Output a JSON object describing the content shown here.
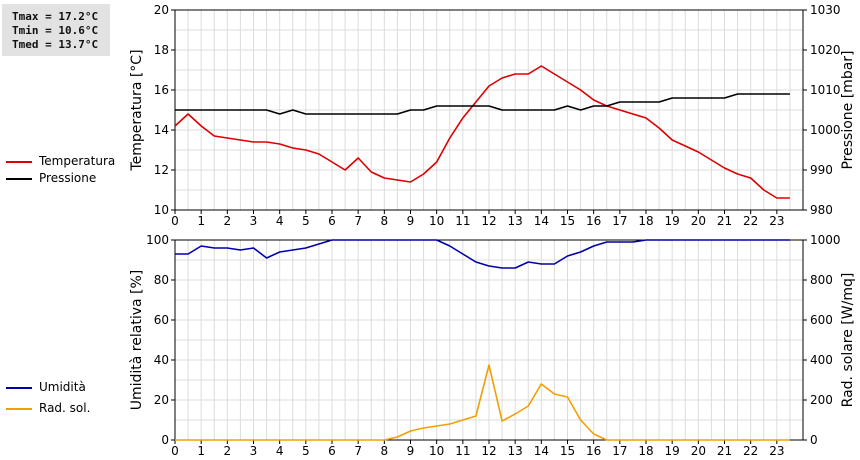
{
  "stats": {
    "tmax": "Tmax = 17.2°C",
    "tmin": "Tmin = 10.6°C",
    "tmed": "Tmed = 13.7°C"
  },
  "legend_top": [
    {
      "label": "Temperatura",
      "color": "#dd0000"
    },
    {
      "label": "Pressione",
      "color": "#000000"
    }
  ],
  "legend_bottom": [
    {
      "label": "Umidità",
      "color": "#0000aa"
    },
    {
      "label": "Rad. sol.",
      "color": "#f0a000"
    }
  ],
  "chart_data": [
    {
      "type": "line",
      "ylabel_left": "Temperatura [°C]",
      "ylabel_right": "Pressione [mbar]",
      "xlim": [
        0,
        24
      ],
      "ylim_left": [
        10,
        20
      ],
      "ylim_right": [
        980,
        1030
      ],
      "x_ticks": [
        0,
        1,
        2,
        3,
        4,
        5,
        6,
        7,
        8,
        9,
        10,
        11,
        12,
        13,
        14,
        15,
        16,
        17,
        18,
        19,
        20,
        21,
        22,
        23
      ],
      "y_ticks_left": [
        10,
        12,
        14,
        16,
        18,
        20
      ],
      "y_ticks_right": [
        980,
        990,
        1000,
        1010,
        1020,
        1030
      ],
      "grid": true,
      "series": [
        {
          "name": "Temperatura",
          "axis": "left",
          "color": "#dd0000",
          "points": [
            [
              0,
              14.2
            ],
            [
              0.5,
              14.8
            ],
            [
              1,
              14.2
            ],
            [
              1.5,
              13.7
            ],
            [
              2,
              13.6
            ],
            [
              2.5,
              13.5
            ],
            [
              3,
              13.4
            ],
            [
              3.5,
              13.4
            ],
            [
              4,
              13.3
            ],
            [
              4.5,
              13.1
            ],
            [
              5,
              13.0
            ],
            [
              5.5,
              12.8
            ],
            [
              6,
              12.4
            ],
            [
              6.5,
              12.0
            ],
            [
              7,
              12.6
            ],
            [
              7.5,
              11.9
            ],
            [
              8,
              11.6
            ],
            [
              8.5,
              11.5
            ],
            [
              9,
              11.4
            ],
            [
              9.5,
              11.8
            ],
            [
              10,
              12.4
            ],
            [
              10.5,
              13.6
            ],
            [
              11,
              14.6
            ],
            [
              11.5,
              15.4
            ],
            [
              12,
              16.2
            ],
            [
              12.5,
              16.6
            ],
            [
              13,
              16.8
            ],
            [
              13.5,
              16.8
            ],
            [
              14,
              17.2
            ],
            [
              14.5,
              16.8
            ],
            [
              15,
              16.4
            ],
            [
              15.5,
              16.0
            ],
            [
              16,
              15.5
            ],
            [
              16.5,
              15.2
            ],
            [
              17,
              15.0
            ],
            [
              17.5,
              14.8
            ],
            [
              18,
              14.6
            ],
            [
              18.5,
              14.1
            ],
            [
              19,
              13.5
            ],
            [
              19.5,
              13.2
            ],
            [
              20,
              12.9
            ],
            [
              20.5,
              12.5
            ],
            [
              21,
              12.1
            ],
            [
              21.5,
              11.8
            ],
            [
              22,
              11.6
            ],
            [
              22.5,
              11.0
            ],
            [
              23,
              10.6
            ],
            [
              23.5,
              10.6
            ]
          ]
        },
        {
          "name": "Pressione",
          "axis": "right",
          "color": "#000000",
          "points": [
            [
              0,
              1005
            ],
            [
              1,
              1005
            ],
            [
              2,
              1005
            ],
            [
              3,
              1005
            ],
            [
              3.5,
              1005
            ],
            [
              4,
              1004
            ],
            [
              4.5,
              1005
            ],
            [
              5,
              1004
            ],
            [
              6,
              1004
            ],
            [
              7,
              1004
            ],
            [
              8,
              1004
            ],
            [
              8.5,
              1004
            ],
            [
              9,
              1005
            ],
            [
              9.5,
              1005
            ],
            [
              10,
              1006
            ],
            [
              11,
              1006
            ],
            [
              11.5,
              1006
            ],
            [
              12,
              1006
            ],
            [
              12.5,
              1005
            ],
            [
              13,
              1005
            ],
            [
              14,
              1005
            ],
            [
              14.5,
              1005
            ],
            [
              15,
              1006
            ],
            [
              15.5,
              1005
            ],
            [
              16,
              1006
            ],
            [
              16.5,
              1006
            ],
            [
              17,
              1007
            ],
            [
              18,
              1007
            ],
            [
              18.5,
              1007
            ],
            [
              19,
              1008
            ],
            [
              20,
              1008
            ],
            [
              21,
              1008
            ],
            [
              21.5,
              1009
            ],
            [
              22,
              1009
            ],
            [
              23,
              1009
            ],
            [
              23.5,
              1009
            ]
          ]
        }
      ]
    },
    {
      "type": "line",
      "ylabel_left": "Umidità relativa [%]",
      "ylabel_right": "Rad. solare [W/mq]",
      "xlim": [
        0,
        24
      ],
      "ylim_left": [
        0,
        100
      ],
      "ylim_right": [
        0,
        1000
      ],
      "x_ticks": [
        0,
        1,
        2,
        3,
        4,
        5,
        6,
        7,
        8,
        9,
        10,
        11,
        12,
        13,
        14,
        15,
        16,
        17,
        18,
        19,
        20,
        21,
        22,
        23
      ],
      "y_ticks_left": [
        0,
        20,
        40,
        60,
        80,
        100
      ],
      "y_ticks_right": [
        0,
        200,
        400,
        600,
        800,
        1000
      ],
      "grid": true,
      "series": [
        {
          "name": "Umidità",
          "axis": "left",
          "color": "#0000aa",
          "points": [
            [
              0,
              93
            ],
            [
              0.5,
              93
            ],
            [
              1,
              97
            ],
            [
              1.5,
              96
            ],
            [
              2,
              96
            ],
            [
              2.5,
              95
            ],
            [
              3,
              96
            ],
            [
              3.5,
              91
            ],
            [
              4,
              94
            ],
            [
              4.5,
              95
            ],
            [
              5,
              96
            ],
            [
              5.5,
              98
            ],
            [
              6,
              100
            ],
            [
              7,
              100
            ],
            [
              8,
              100
            ],
            [
              9,
              100
            ],
            [
              10,
              100
            ],
            [
              10.5,
              97
            ],
            [
              11,
              93
            ],
            [
              11.5,
              89
            ],
            [
              12,
              87
            ],
            [
              12.5,
              86
            ],
            [
              13,
              86
            ],
            [
              13.5,
              89
            ],
            [
              14,
              88
            ],
            [
              14.5,
              88
            ],
            [
              15,
              92
            ],
            [
              15.5,
              94
            ],
            [
              16,
              97
            ],
            [
              16.5,
              99
            ],
            [
              17,
              99
            ],
            [
              17.5,
              99
            ],
            [
              18,
              100
            ],
            [
              19,
              100
            ],
            [
              20,
              100
            ],
            [
              21,
              100
            ],
            [
              22,
              100
            ],
            [
              23,
              100
            ],
            [
              23.5,
              100
            ]
          ]
        },
        {
          "name": "Rad. sol.",
          "axis": "right",
          "color": "#f0a000",
          "points": [
            [
              0,
              0
            ],
            [
              1,
              0
            ],
            [
              2,
              0
            ],
            [
              3,
              0
            ],
            [
              4,
              0
            ],
            [
              5,
              0
            ],
            [
              6,
              0
            ],
            [
              7,
              0
            ],
            [
              8,
              0
            ],
            [
              8.5,
              15
            ],
            [
              9,
              45
            ],
            [
              9.5,
              60
            ],
            [
              10,
              70
            ],
            [
              10.5,
              80
            ],
            [
              11,
              100
            ],
            [
              11.5,
              120
            ],
            [
              12,
              375
            ],
            [
              12.5,
              95
            ],
            [
              13,
              130
            ],
            [
              13.5,
              170
            ],
            [
              14,
              280
            ],
            [
              14.5,
              230
            ],
            [
              15,
              215
            ],
            [
              15.5,
              100
            ],
            [
              16,
              30
            ],
            [
              16.5,
              0
            ],
            [
              17,
              0
            ],
            [
              18,
              0
            ],
            [
              19,
              0
            ],
            [
              20,
              0
            ],
            [
              21,
              0
            ],
            [
              22,
              0
            ],
            [
              23,
              0
            ],
            [
              23.5,
              0
            ]
          ]
        }
      ]
    }
  ]
}
